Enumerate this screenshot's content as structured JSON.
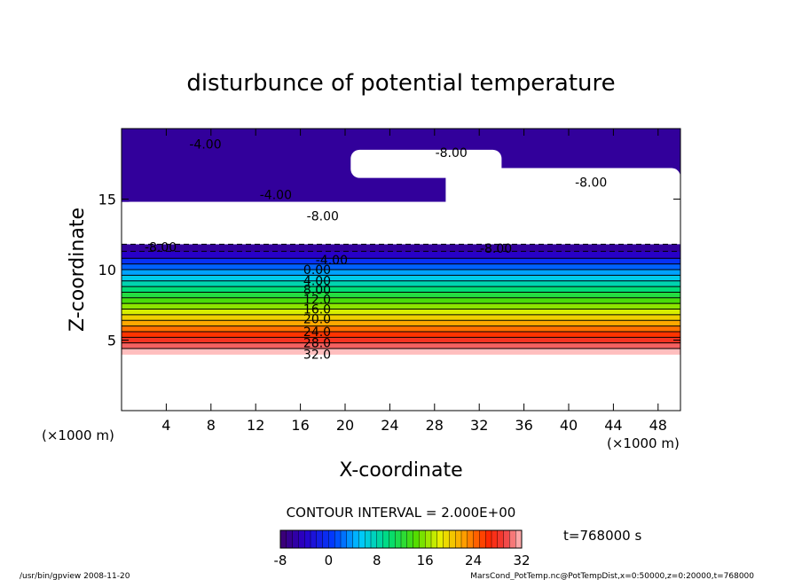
{
  "chart_data": {
    "type": "heatmap",
    "title": "disturbunce of potential temperature",
    "xlabel": "X-coordinate",
    "ylabel": "Z-coordinate",
    "x_unit_left": "(×1000 m)",
    "x_unit_right": "(×1000 m)",
    "xlim": [
      0,
      50
    ],
    "ylim": [
      0,
      20
    ],
    "x_ticks": [
      4,
      8,
      12,
      16,
      20,
      24,
      28,
      32,
      36,
      40,
      44,
      48
    ],
    "y_ticks": [
      5,
      10,
      15
    ],
    "contour_interval_label": "CONTOUR INTERVAL = 2.000E+00",
    "time_label": "t=768000 s",
    "colorbar": {
      "min": -8,
      "max": 32,
      "tick_labels": [
        "-8",
        "0",
        "8",
        "16",
        "24",
        "32"
      ],
      "tick_values": [
        -8,
        0,
        8,
        16,
        24,
        32
      ]
    },
    "contour_labels": [
      {
        "text": "-4.00",
        "x": 7.5,
        "z": 18.9
      },
      {
        "text": "-8.00",
        "x": 29.5,
        "z": 18.3
      },
      {
        "text": "-8.00",
        "x": 42.0,
        "z": 16.2
      },
      {
        "text": "-4.00",
        "x": 13.8,
        "z": 15.3
      },
      {
        "text": "-8.00",
        "x": 18.0,
        "z": 13.8
      },
      {
        "text": "-8.00",
        "x": 3.5,
        "z": 11.6
      },
      {
        "text": "-8.00",
        "x": 33.5,
        "z": 11.5
      },
      {
        "text": "-4.00",
        "x": 18.8,
        "z": 10.7
      },
      {
        "text": "0.00",
        "x": 17.5,
        "z": 10.0
      },
      {
        "text": "4.00",
        "x": 17.5,
        "z": 9.2
      },
      {
        "text": "8.00",
        "x": 17.5,
        "z": 8.6
      },
      {
        "text": "12.0",
        "x": 17.5,
        "z": 7.9
      },
      {
        "text": "16.0",
        "x": 17.5,
        "z": 7.2
      },
      {
        "text": "20.0",
        "x": 17.5,
        "z": 6.5
      },
      {
        "text": "24.0",
        "x": 17.5,
        "z": 5.6
      },
      {
        "text": "28.0",
        "x": 17.5,
        "z": 4.8
      },
      {
        "text": "32.0",
        "x": 17.5,
        "z": 4.0
      }
    ],
    "bands": [
      {
        "z0": 4.0,
        "z1": 4.4,
        "value": 32
      },
      {
        "z0": 4.4,
        "z1": 4.8,
        "value": 30
      },
      {
        "z0": 4.8,
        "z1": 5.2,
        "value": 28
      },
      {
        "z0": 5.2,
        "z1": 5.6,
        "value": 26
      },
      {
        "z0": 5.6,
        "z1": 6.0,
        "value": 24
      },
      {
        "z0": 6.0,
        "z1": 6.4,
        "value": 22
      },
      {
        "z0": 6.4,
        "z1": 6.8,
        "value": 20
      },
      {
        "z0": 6.8,
        "z1": 7.2,
        "value": 18
      },
      {
        "z0": 7.2,
        "z1": 7.6,
        "value": 16
      },
      {
        "z0": 7.6,
        "z1": 8.0,
        "value": 14
      },
      {
        "z0": 8.0,
        "z1": 8.4,
        "value": 12
      },
      {
        "z0": 8.4,
        "z1": 8.8,
        "value": 10
      },
      {
        "z0": 8.8,
        "z1": 9.2,
        "value": 8
      },
      {
        "z0": 9.2,
        "z1": 9.6,
        "value": 6
      },
      {
        "z0": 9.6,
        "z1": 10.0,
        "value": 4
      },
      {
        "z0": 10.0,
        "z1": 10.4,
        "value": 2
      },
      {
        "z0": 10.4,
        "z1": 10.8,
        "value": 0
      },
      {
        "z0": 10.8,
        "z1": 11.3,
        "value": -4
      },
      {
        "z0": 11.3,
        "z1": 11.8,
        "value": -6
      }
    ],
    "upper_region": {
      "z0": 14.8,
      "z1": 20,
      "value": -6
    },
    "unresolved_gaps": [
      {
        "x0": 0,
        "x1": 50,
        "z0": 11.8,
        "z1": 14.8
      },
      {
        "x0": 20.5,
        "x1": 34.0,
        "z0": 16.5,
        "z1": 18.5
      },
      {
        "x0": 29.0,
        "x1": 50,
        "z0": 14.0,
        "z1": 17.2
      }
    ]
  },
  "footer": {
    "left": "/usr/bin/gpview   2008-11-20",
    "right": "MarsCond_PotTemp.nc@PotTempDist,x=0:50000,z=0:20000,t=768000"
  },
  "colors": {
    "cold_min": "#1a0050",
    "mid": "#00cc66",
    "warm_max": "#ffb3b3"
  }
}
